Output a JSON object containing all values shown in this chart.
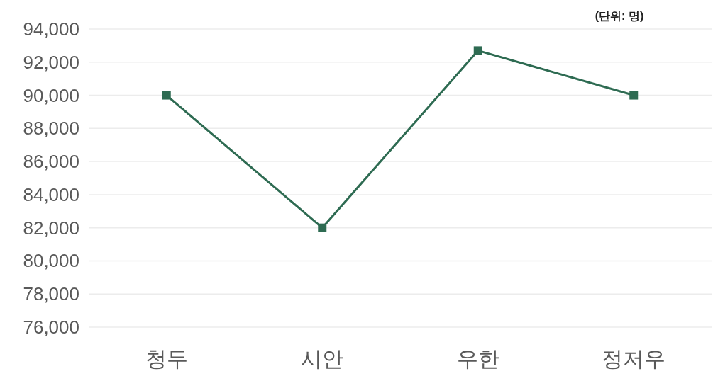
{
  "chart_data": {
    "type": "line",
    "annotations": [
      "(단위: 명)"
    ],
    "categories": [
      "청두",
      "시안",
      "우한",
      "정저우"
    ],
    "values": [
      90000,
      82000,
      92700,
      90000
    ],
    "color": "#2e6b52",
    "marker": "square",
    "grid": "y",
    "ylim": [
      76000,
      94000
    ],
    "yticks": [
      {
        "value": 76000,
        "label": "76,000"
      },
      {
        "value": 78000,
        "label": "78,000"
      },
      {
        "value": 80000,
        "label": "80,000"
      },
      {
        "value": 82000,
        "label": "82,000"
      },
      {
        "value": 84000,
        "label": "84,000"
      },
      {
        "value": 86000,
        "label": "86,000"
      },
      {
        "value": 88000,
        "label": "88,000"
      },
      {
        "value": 90000,
        "label": "90,000"
      },
      {
        "value": 92000,
        "label": "92,000"
      },
      {
        "value": 94000,
        "label": "94,000"
      }
    ]
  }
}
